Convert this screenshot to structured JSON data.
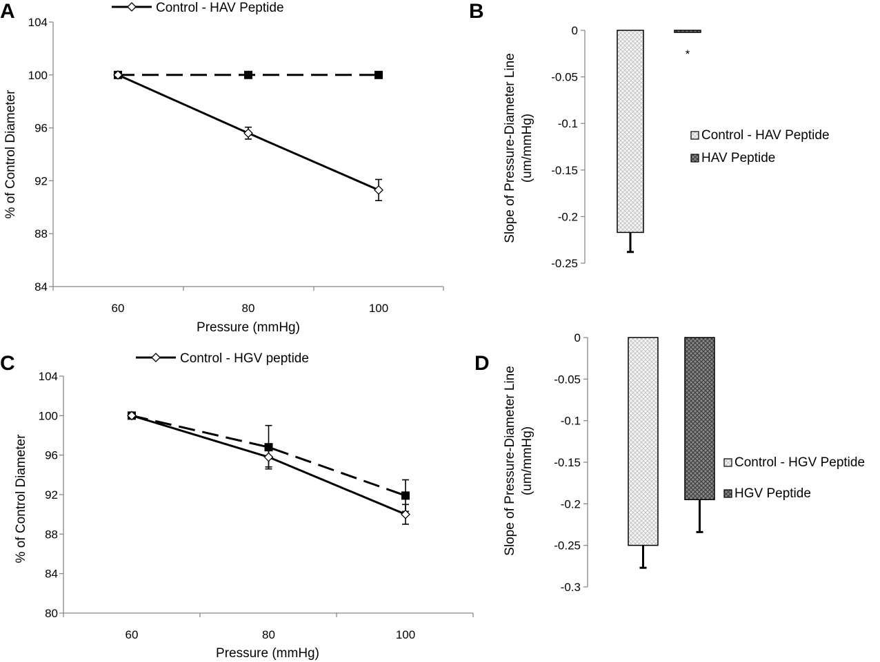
{
  "chart_data": [
    {
      "panel": "A",
      "type": "line",
      "x": [
        60,
        80,
        100
      ],
      "xlabel": "Pressure (mmHg)",
      "ylabel": "% of Control Diameter",
      "ylim": [
        84,
        104
      ],
      "yticks": [
        84,
        88,
        92,
        96,
        100,
        104
      ],
      "series": [
        {
          "name": "Control - HAV Peptide",
          "style": "solid",
          "marker": "open-diamond",
          "values": [
            100,
            95.6,
            91.3
          ],
          "errors": [
            0,
            0.45,
            0.8
          ],
          "in_legend": true
        },
        {
          "name": "HAV Peptide",
          "style": "dashed",
          "marker": "filled-square",
          "values": [
            100,
            100,
            100
          ],
          "errors": [
            0,
            0,
            0
          ],
          "in_legend": false
        }
      ]
    },
    {
      "panel": "B",
      "type": "bar",
      "categories": [
        "Control - HAV Peptide",
        "HAV Peptide"
      ],
      "values": [
        -0.217,
        -0.002
      ],
      "errors": [
        0.021,
        0
      ],
      "ylabel": "Slope of Pressure-Diameter Line (um/mmHg)",
      "ylim": [
        -0.25,
        0
      ],
      "yticks": [
        0,
        -0.05,
        -0.1,
        -0.15,
        -0.2,
        -0.25
      ],
      "annotation": "*",
      "legend": [
        "Control - HAV Peptide",
        "HAV Peptide"
      ]
    },
    {
      "panel": "C",
      "type": "line",
      "x": [
        60,
        80,
        100
      ],
      "xlabel": "Pressure (mmHg)",
      "ylabel": "% of Control Diameter",
      "ylim": [
        80,
        104
      ],
      "yticks": [
        80,
        84,
        88,
        92,
        96,
        100,
        104
      ],
      "series": [
        {
          "name": "Control - HGV peptide",
          "style": "solid",
          "marker": "open-diamond",
          "values": [
            100,
            95.8,
            90.0
          ],
          "errors": [
            0,
            1.0,
            1.0
          ],
          "in_legend": true
        },
        {
          "name": "HGV peptide",
          "style": "dashed",
          "marker": "filled-square",
          "values": [
            100,
            96.8,
            91.9
          ],
          "errors": [
            0,
            2.2,
            1.6
          ],
          "in_legend": false
        }
      ]
    },
    {
      "panel": "D",
      "type": "bar",
      "categories": [
        "Control - HGV Peptide",
        "HGV Peptide"
      ],
      "values": [
        -0.25,
        -0.195
      ],
      "errors": [
        0.027,
        0.039
      ],
      "ylabel": "Slope of Pressure-Diameter Line (um/mmHg)",
      "ylim": [
        -0.3,
        0
      ],
      "yticks": [
        0,
        -0.05,
        -0.1,
        -0.15,
        -0.2,
        -0.25,
        -0.3
      ],
      "legend": [
        "Control - HGV Peptide",
        "HGV Peptide"
      ]
    }
  ]
}
